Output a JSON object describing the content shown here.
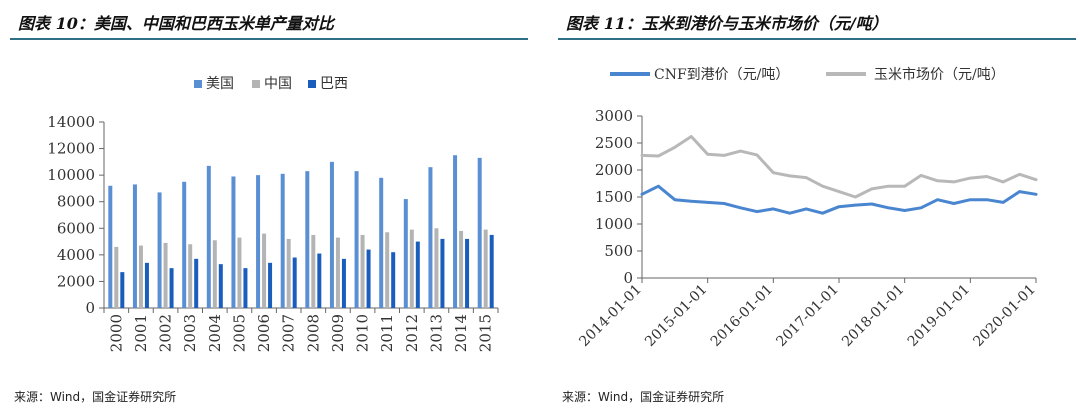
{
  "left": {
    "title": "图表 10：美国、中国和巴西玉米单产量对比",
    "source": "来源：Wind，国金证券研究所"
  },
  "right": {
    "title": "图表 11：玉米到港价与玉米市场价（元/吨）",
    "source": "来源：Wind，国金证券研究所"
  },
  "chart_data": [
    {
      "type": "bar",
      "title": "",
      "categories": [
        "2000",
        "2001",
        "2002",
        "2003",
        "2004",
        "2005",
        "2006",
        "2007",
        "2008",
        "2009",
        "2010",
        "2011",
        "2012",
        "2013",
        "2014",
        "2015"
      ],
      "ylim": [
        0,
        14000
      ],
      "yticks": [
        "0",
        "2000",
        "4000",
        "6000",
        "8000",
        "10000",
        "12000",
        "14000"
      ],
      "legend_position": "top",
      "grid": false,
      "series": [
        {
          "name": "美国",
          "color": "#5b8fd4",
          "values": [
            9200,
            9300,
            8700,
            9500,
            10700,
            9900,
            10000,
            10100,
            10300,
            11000,
            10300,
            9800,
            8200,
            10600,
            11500,
            11300
          ]
        },
        {
          "name": "中国",
          "color": "#b4b4b4",
          "values": [
            4600,
            4700,
            4900,
            4800,
            5100,
            5300,
            5600,
            5200,
            5500,
            5300,
            5500,
            5700,
            5900,
            6000,
            5800,
            5900
          ]
        },
        {
          "name": "巴西",
          "color": "#1a5ebd",
          "values": [
            2700,
            3400,
            3000,
            3700,
            3300,
            3000,
            3400,
            3800,
            4100,
            3700,
            4400,
            4200,
            5000,
            5200,
            5200,
            5500
          ]
        }
      ]
    },
    {
      "type": "line",
      "title": "",
      "xticks": [
        "2014-01-01",
        "2015-01-01",
        "2016-01-01",
        "2017-01-01",
        "2018-01-01",
        "2019-01-01",
        "2020-01-01"
      ],
      "ylim": [
        0,
        3000
      ],
      "yticks": [
        "0",
        "500",
        "1000",
        "1500",
        "2000",
        "2500",
        "3000"
      ],
      "legend_position": "top",
      "grid": false,
      "series": [
        {
          "name": "CNF到港价（元/吨）",
          "color": "#4a86d0",
          "x": [
            "2014-01",
            "2014-04",
            "2014-07",
            "2014-10",
            "2015-01",
            "2015-04",
            "2015-07",
            "2015-10",
            "2016-01",
            "2016-04",
            "2016-07",
            "2016-10",
            "2017-01",
            "2017-04",
            "2017-07",
            "2017-10",
            "2018-01",
            "2018-04",
            "2018-07",
            "2018-10",
            "2019-01",
            "2019-04",
            "2019-07",
            "2019-10",
            "2020-01"
          ],
          "y": [
            1550,
            1700,
            1450,
            1420,
            1400,
            1380,
            1300,
            1230,
            1280,
            1200,
            1280,
            1200,
            1320,
            1350,
            1370,
            1300,
            1250,
            1300,
            1450,
            1380,
            1450,
            1450,
            1400,
            1600,
            1550
          ]
        },
        {
          "name": "玉米市场价（元/吨）",
          "color": "#b8b8b8",
          "x": [
            "2014-01",
            "2014-04",
            "2014-07",
            "2014-10",
            "2015-01",
            "2015-04",
            "2015-07",
            "2015-10",
            "2016-01",
            "2016-04",
            "2016-07",
            "2016-10",
            "2017-01",
            "2017-04",
            "2017-07",
            "2017-10",
            "2018-01",
            "2018-04",
            "2018-07",
            "2018-10",
            "2019-01",
            "2019-04",
            "2019-07",
            "2019-10",
            "2020-01"
          ],
          "y": [
            2270,
            2260,
            2420,
            2620,
            2290,
            2270,
            2350,
            2280,
            1950,
            1890,
            1860,
            1700,
            1600,
            1500,
            1650,
            1700,
            1700,
            1900,
            1800,
            1780,
            1850,
            1880,
            1780,
            1920,
            1820
          ]
        }
      ]
    }
  ]
}
